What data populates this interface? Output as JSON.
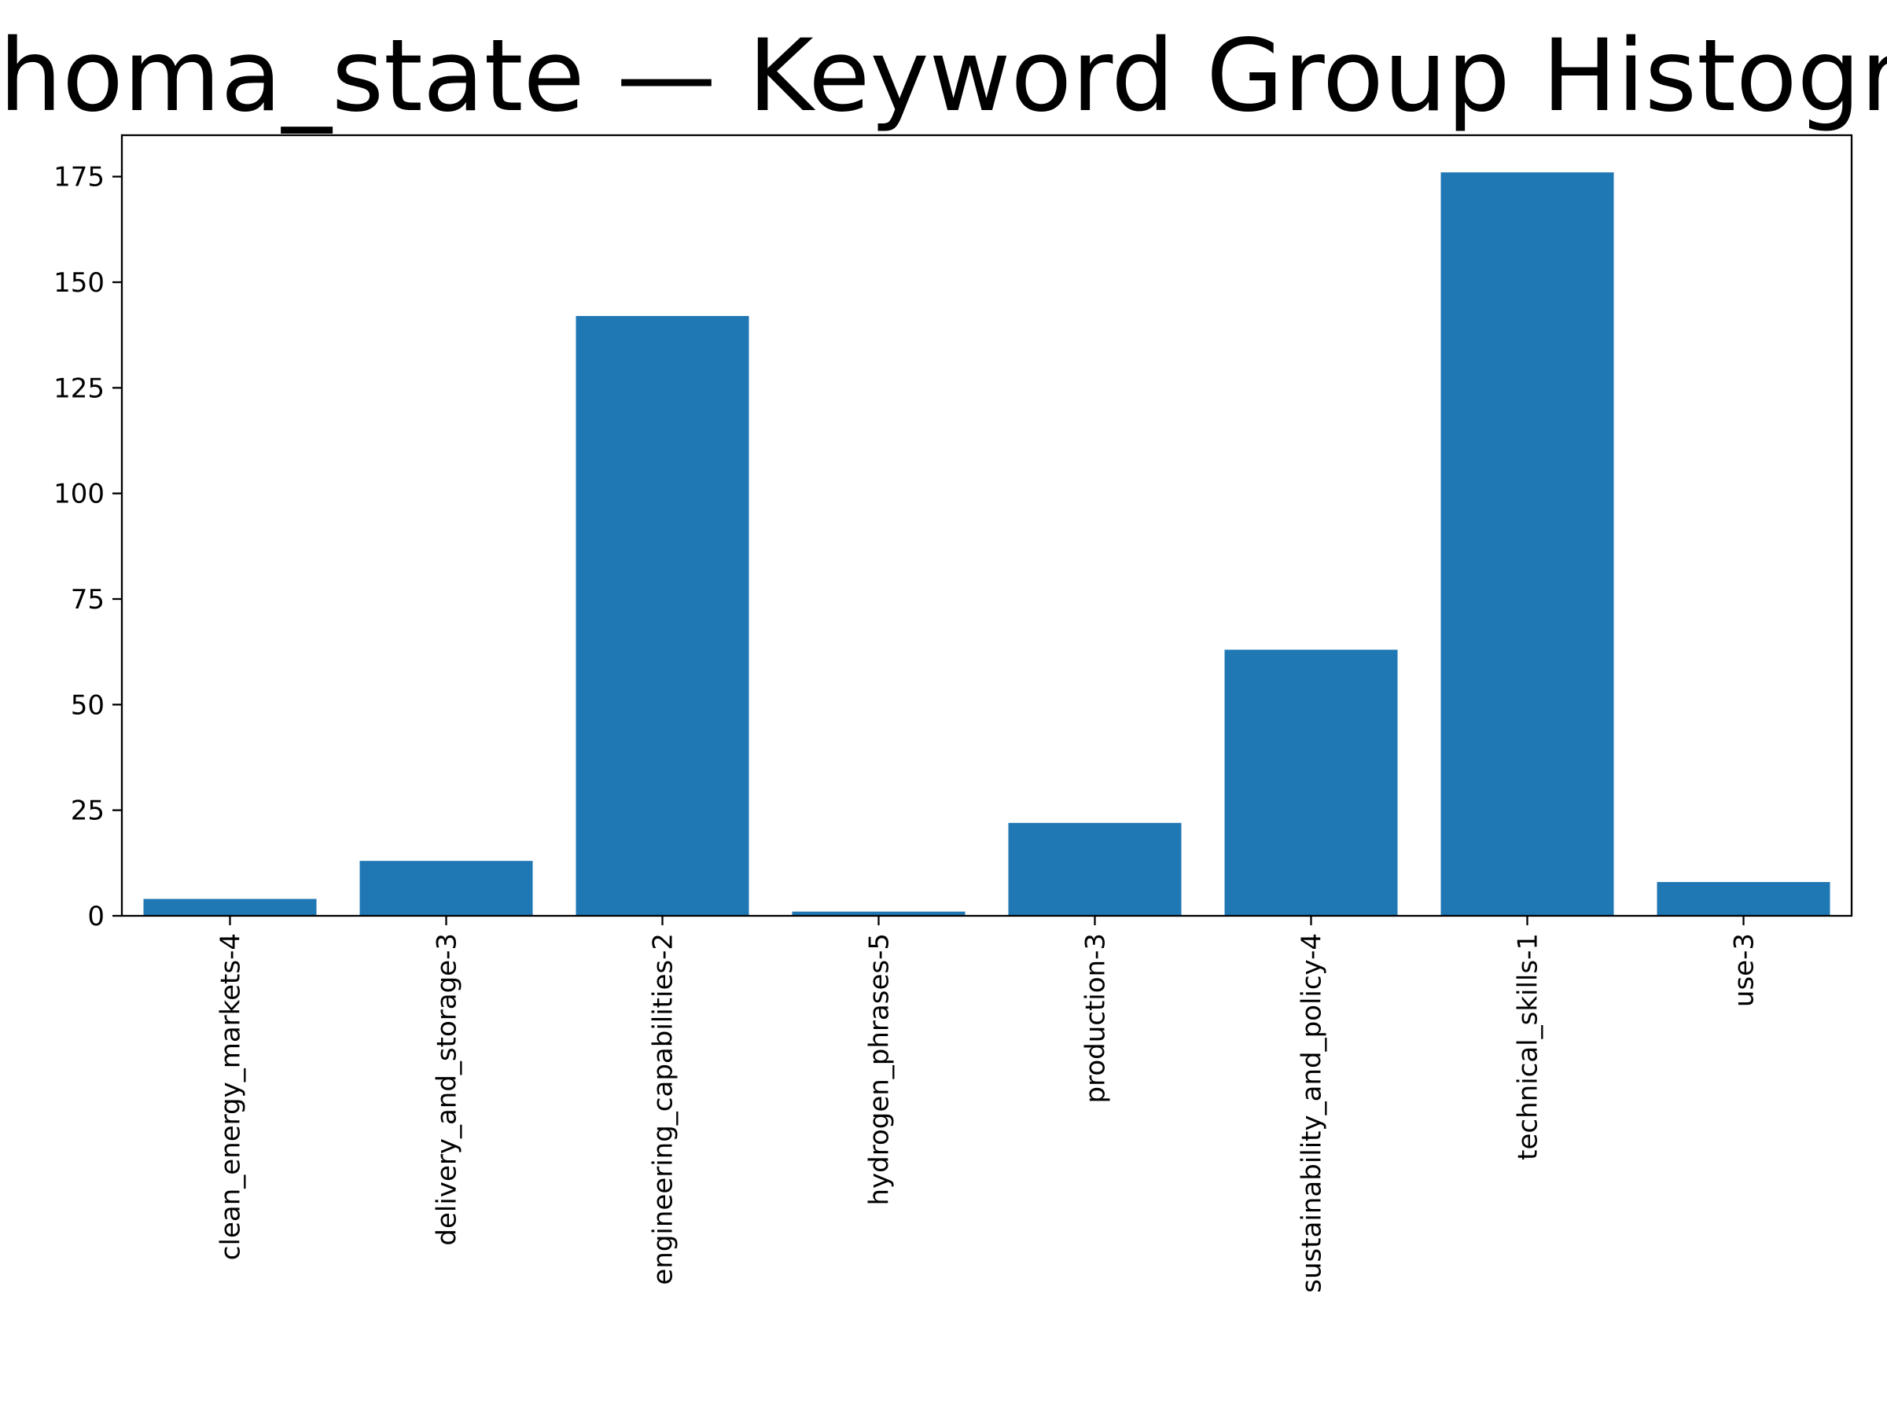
{
  "chart_data": {
    "type": "bar",
    "title": "Oklahoma_state — Keyword Group Histogram",
    "xlabel": "",
    "ylabel": "",
    "categories": [
      "clean_energy_markets-4",
      "delivery_and_storage-3",
      "engineering_capabilities-2",
      "hydrogen_phrases-5",
      "production-3",
      "sustainability_and_policy-4",
      "technical_skills-1",
      "use-3"
    ],
    "values": [
      4,
      13,
      142,
      1,
      22,
      63,
      176,
      8
    ],
    "yticks": [
      0,
      25,
      50,
      75,
      100,
      125,
      150,
      175
    ],
    "ylim": [
      0,
      184.8
    ],
    "grid": false,
    "legend": "none",
    "bar_color": "#1f77b4"
  }
}
